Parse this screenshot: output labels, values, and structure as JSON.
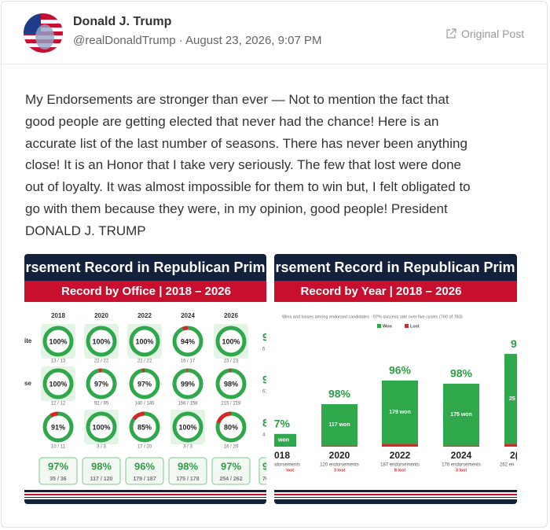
{
  "post": {
    "author": "Donald J. Trump",
    "handle_line": "@realDonaldTrump · August 23, 2026, 9:07 PM",
    "original_link": "Original Post",
    "body": [
      "My Endorsements are stronger than ever — Not to mention the fact that",
      "good people are getting elected that never had the chance! Here is an",
      "accurate list of the last number of seasons. There has never been anything",
      "close! It is an Honor that I take very seriously. The few that lost were done",
      "out of loyalty. It was almost impossible for them to win but, I felt obligated to",
      "go with them because they were, in my opinion, good people! President",
      "DONALD J. TRUMP"
    ]
  },
  "images": [
    {
      "type": "rings",
      "title": "rsement Record in Republican Prim",
      "subtitle": "Record by Office | 2018 – 2026",
      "columns": [
        "2018",
        "2020",
        "2022",
        "2024",
        "2026"
      ],
      "rows": [
        {
          "label": "ite",
          "cells": [
            {
              "value": 100,
              "label": "100%",
              "count": "13 / 13"
            },
            {
              "value": 100,
              "label": "100%",
              "count": "22 / 22"
            },
            {
              "value": 100,
              "label": "100%",
              "count": "22 / 22"
            },
            {
              "value": 94,
              "label": "94%",
              "count": "16 / 17"
            },
            {
              "value": 100,
              "label": "100%",
              "count": "23 / 23"
            }
          ],
          "partial": {
            "label": "9",
            "count": "6"
          }
        },
        {
          "label": "se",
          "cells": [
            {
              "value": 100,
              "label": "100%",
              "count": "12 / 12"
            },
            {
              "value": 97,
              "label": "97%",
              "count": "92 / 95"
            },
            {
              "value": 97,
              "label": "97%",
              "count": "140 / 145"
            },
            {
              "value": 99,
              "label": "99%",
              "count": "156 / 158"
            },
            {
              "value": 98,
              "label": "98%",
              "count": "215 / 219"
            }
          ],
          "partial": {
            "label": "9",
            "count": "61"
          }
        },
        {
          "label": "",
          "cells": [
            {
              "value": 91,
              "label": "91%",
              "count": "10 / 11"
            },
            {
              "value": 100,
              "label": "100%",
              "count": "3 / 3"
            },
            {
              "value": 85,
              "label": "85%",
              "count": "17 / 20"
            },
            {
              "value": 100,
              "label": "100%",
              "count": "3 / 3"
            },
            {
              "value": 80,
              "label": "80%",
              "count": "16 / 20"
            }
          ],
          "partial": {
            "label": "8",
            "count": "4"
          }
        }
      ],
      "totals": [
        {
          "label": "97%",
          "count": "35 / 36"
        },
        {
          "label": "98%",
          "count": "117 / 120"
        },
        {
          "label": "96%",
          "count": "179 / 187"
        },
        {
          "label": "98%",
          "count": "175 / 178"
        },
        {
          "label": "97%",
          "count": "254 / 262"
        }
      ],
      "totals_partial": {
        "label": "9",
        "count": "76"
      }
    },
    {
      "type": "bar",
      "title": "rsement Record in Republican Prim",
      "subtitle": "Record by Year | 2018 – 2026",
      "note": "Wins and losses among endorsed candidates · 97% success rate over five cycles (760 of 783)",
      "categories": [
        "018",
        "2020",
        "2022",
        "2024",
        "2("
      ],
      "series": [
        {
          "name": "Won",
          "color": "#2ea84a",
          "values": [
            35,
            117,
            179,
            175,
            254
          ],
          "value_labels": [
            "won",
            "117 won",
            "179 won",
            "175 won",
            "25"
          ]
        },
        {
          "name": "Lost",
          "color": "#d62828",
          "values": [
            1,
            3,
            8,
            3,
            8
          ],
          "value_labels": [
            "lost",
            "3 lost",
            "8 lost",
            "3 lost",
            null
          ]
        }
      ],
      "rate_labels": [
        "7%",
        "98%",
        "96%",
        "98%",
        "9"
      ],
      "endorsement_labels": [
        "ndorsements",
        "120 endorsements",
        "187 endorsements",
        "178 endorsements",
        "262 en"
      ]
    }
  ]
}
